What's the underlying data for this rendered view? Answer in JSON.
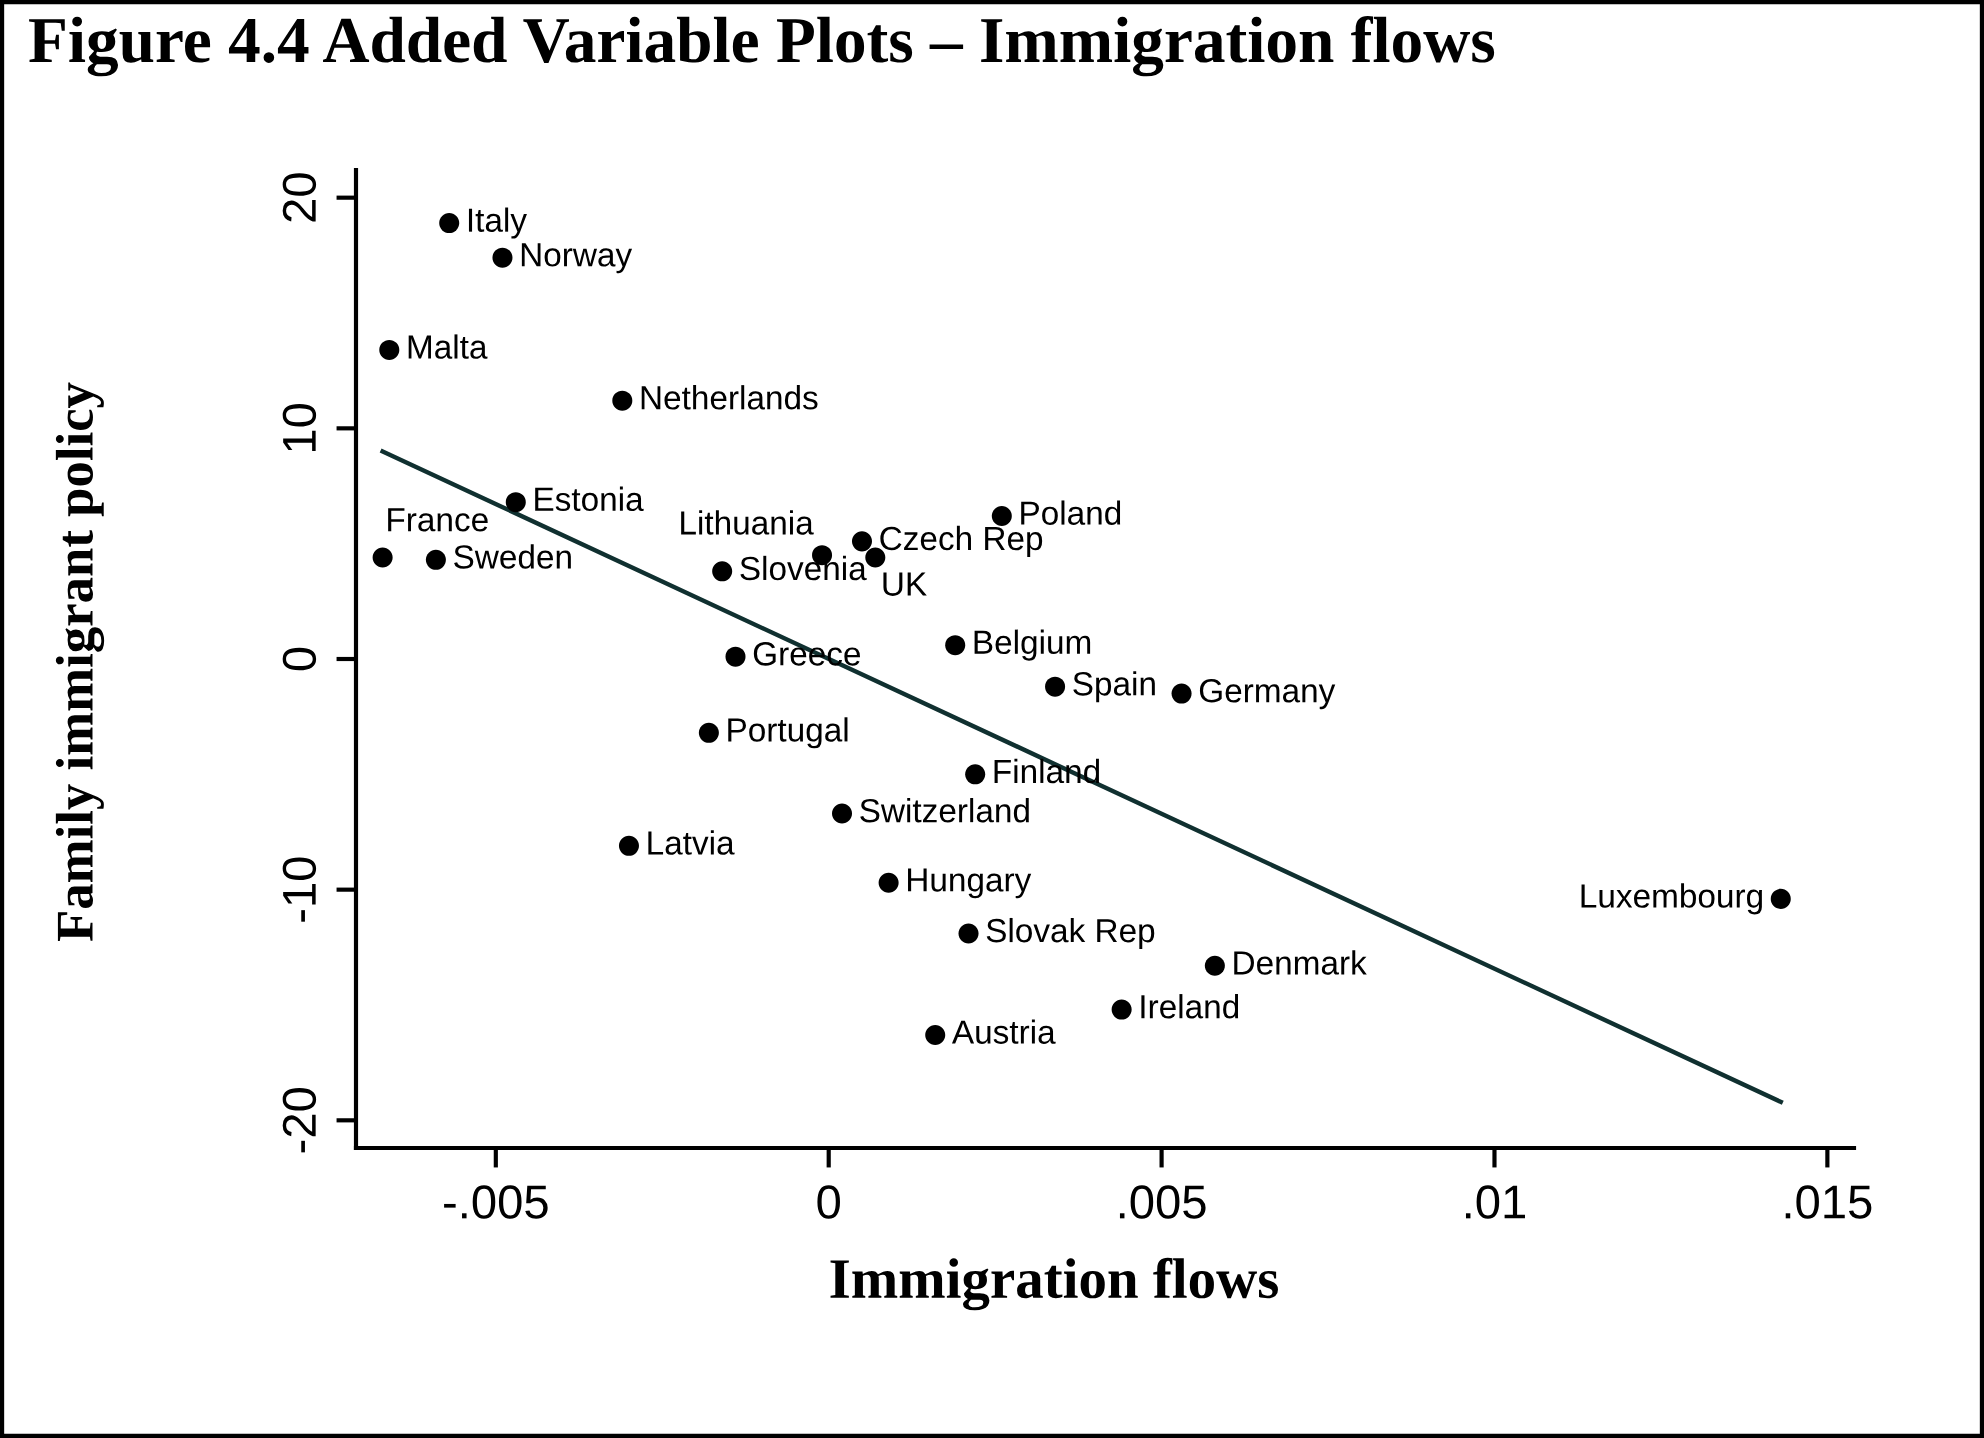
{
  "chart_data": {
    "type": "scatter",
    "title": "Figure 4.4 Added Variable Plots – Immigration flows",
    "xlabel": "Immigration flows",
    "ylabel": "Family immigrant policy",
    "xlim": [
      -0.0071,
      0.0154
    ],
    "ylim": [
      -21.2,
      21.2
    ],
    "xticks": [
      {
        "value": -0.005,
        "label": "-.005"
      },
      0,
      {
        "value": 0.005,
        "label": ".005"
      },
      {
        "value": 0.01,
        "label": ".01"
      },
      {
        "value": 0.015,
        "label": ".015"
      }
    ],
    "yticks": [
      -20,
      -10,
      0,
      10,
      20
    ],
    "grid": false,
    "marker": "circle",
    "series": [
      {
        "color": "#000000",
        "x": [
          -0.0057,
          -0.0049,
          -0.0066,
          -0.0031,
          -0.0047,
          -0.0067,
          -0.0059,
          0.0005,
          0.0007,
          -0.0016,
          -0.0001,
          0.0026,
          -0.0014,
          0.0019,
          0.0034,
          0.0053,
          -0.0018,
          0.0022,
          0.0002,
          -0.003,
          0.0009,
          0.0021,
          0.0058,
          0.0044,
          0.0016,
          0.0143
        ],
        "values": [
          18.9,
          17.4,
          13.4,
          11.2,
          6.8,
          4.4,
          4.3,
          5.1,
          4.4,
          3.8,
          4.5,
          6.2,
          0.1,
          0.6,
          -1.2,
          -1.5,
          -3.2,
          -5.0,
          -6.7,
          -8.1,
          -9.7,
          -11.9,
          -13.3,
          -15.2,
          -16.3,
          -10.4
        ]
      },
      {
        "type": "line",
        "color": "#103030",
        "line_style": "solid",
        "marker": "none",
        "x": [
          -0.0067,
          0.0143
        ],
        "values": [
          9.0,
          -19.2
        ]
      }
    ],
    "annotations": [
      {
        "text": "Italy",
        "x": -0.0057,
        "y": 18.9
      },
      {
        "text": "Norway",
        "x": -0.0049,
        "y": 17.4
      },
      {
        "text": "Malta",
        "x": -0.0066,
        "y": 13.4
      },
      {
        "text": "Netherlands",
        "x": -0.0031,
        "y": 11.2
      },
      {
        "text": "Estonia",
        "x": -0.0047,
        "y": 6.8
      },
      {
        "text": "France",
        "x": -0.0067,
        "y": 4.4
      },
      {
        "text": "Sweden",
        "x": -0.0059,
        "y": 4.3
      },
      {
        "text": "Czech Rep",
        "x": 0.0005,
        "y": 5.1
      },
      {
        "text": "UK",
        "x": 0.0007,
        "y": 4.4
      },
      {
        "text": "Slovenia",
        "x": -0.0016,
        "y": 3.8
      },
      {
        "text": "Lithuania",
        "x": -0.0001,
        "y": 4.5
      },
      {
        "text": "Poland",
        "x": 0.0026,
        "y": 6.2
      },
      {
        "text": "Greece",
        "x": -0.0014,
        "y": 0.1
      },
      {
        "text": "Belgium",
        "x": 0.0019,
        "y": 0.6
      },
      {
        "text": "Spain",
        "x": 0.0034,
        "y": -1.2
      },
      {
        "text": "Germany",
        "x": 0.0053,
        "y": -1.5
      },
      {
        "text": "Portugal",
        "x": -0.0018,
        "y": -3.2
      },
      {
        "text": "Finland",
        "x": 0.0022,
        "y": -5.0
      },
      {
        "text": "Switzerland",
        "x": 0.0002,
        "y": -6.7
      },
      {
        "text": "Latvia",
        "x": -0.003,
        "y": -8.1
      },
      {
        "text": "Hungary",
        "x": 0.0009,
        "y": -9.7
      },
      {
        "text": "Slovak Rep",
        "x": 0.0021,
        "y": -11.9
      },
      {
        "text": "Denmark",
        "x": 0.0058,
        "y": -13.3
      },
      {
        "text": "Ireland",
        "x": 0.0044,
        "y": -15.2
      },
      {
        "text": "Austria",
        "x": 0.0016,
        "y": -16.3
      },
      {
        "text": "Luxembourg",
        "x": 0.0143,
        "y": -10.4
      }
    ]
  }
}
